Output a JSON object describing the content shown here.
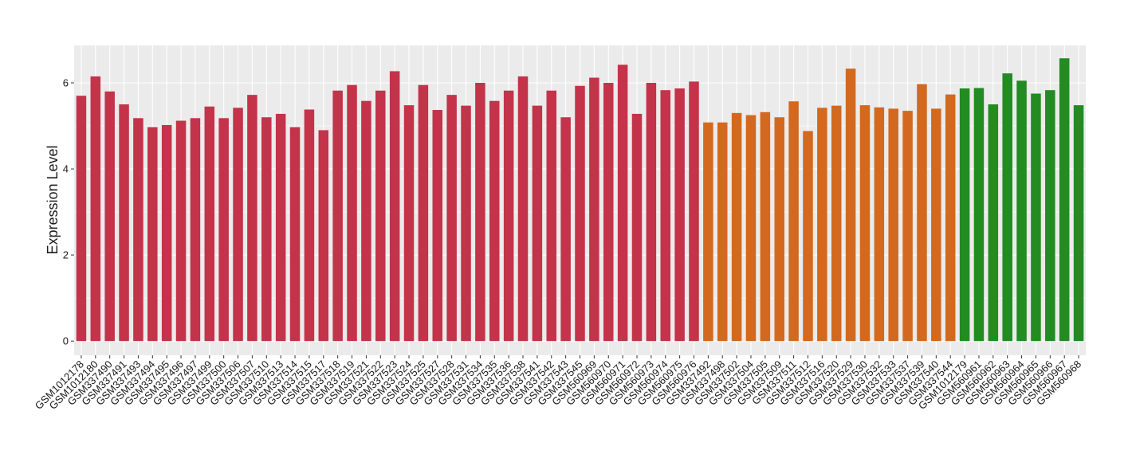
{
  "chart_data": {
    "type": "bar",
    "y_label": "Expression Level",
    "ylim": [
      -0.33,
      6.87
    ],
    "yticks": [
      0,
      2,
      4,
      6
    ],
    "grid": true,
    "series": [
      {
        "color": "#c3334a",
        "categories": [
          "GSM1012178",
          "GSM1012180",
          "GSM337490",
          "GSM337491",
          "GSM337493",
          "GSM337494",
          "GSM337495",
          "GSM337496",
          "GSM337497",
          "GSM337499",
          "GSM337500",
          "GSM337506",
          "GSM337507",
          "GSM337510",
          "GSM337513",
          "GSM337514",
          "GSM337515",
          "GSM337517",
          "GSM337518",
          "GSM337519",
          "GSM337521",
          "GSM337522",
          "GSM337523",
          "GSM337524",
          "GSM337525",
          "GSM337527",
          "GSM337528",
          "GSM337531",
          "GSM337534",
          "GSM337535",
          "GSM337536",
          "GSM337538",
          "GSM337541",
          "GSM337542",
          "GSM337543",
          "GSM337545",
          "GSM560969",
          "GSM560970",
          "GSM560971",
          "GSM560972",
          "GSM560973",
          "GSM560974",
          "GSM560975",
          "GSM560976"
        ],
        "values": [
          5.7,
          6.15,
          5.8,
          5.5,
          5.18,
          4.97,
          5.02,
          5.12,
          5.18,
          5.45,
          5.18,
          5.42,
          5.72,
          5.2,
          5.28,
          4.97,
          5.38,
          4.9,
          5.82,
          5.95,
          5.58,
          5.82,
          6.27,
          5.48,
          5.95,
          5.37,
          5.72,
          5.47,
          6.0,
          5.58,
          5.82,
          6.15,
          5.47,
          5.82,
          5.2,
          5.93,
          6.12,
          6.0,
          6.42,
          5.28,
          6.0,
          5.83,
          5.87,
          6.03
        ]
      },
      {
        "color": "#d2691f",
        "categories": [
          "GSM337492",
          "GSM337498",
          "GSM337502",
          "GSM337504",
          "GSM337505",
          "GSM337509",
          "GSM337511",
          "GSM337512",
          "GSM337516",
          "GSM337520",
          "GSM337529",
          "GSM337530",
          "GSM337532",
          "GSM337533",
          "GSM337537",
          "GSM337539",
          "GSM337540",
          "GSM337544"
        ],
        "values": [
          5.08,
          5.08,
          5.3,
          5.25,
          5.32,
          5.2,
          5.57,
          4.88,
          5.42,
          5.47,
          6.33,
          5.48,
          5.43,
          5.4,
          5.35,
          5.97,
          5.4,
          5.73
        ]
      },
      {
        "color": "#228b22",
        "categories": [
          "GSM1012179",
          "GSM560961",
          "GSM560962",
          "GSM560963",
          "GSM560964",
          "GSM560965",
          "GSM560966",
          "GSM560967",
          "GSM560968"
        ],
        "values": [
          5.87,
          5.88,
          5.5,
          6.22,
          6.05,
          5.75,
          5.83,
          6.57,
          5.48
        ]
      }
    ]
  }
}
